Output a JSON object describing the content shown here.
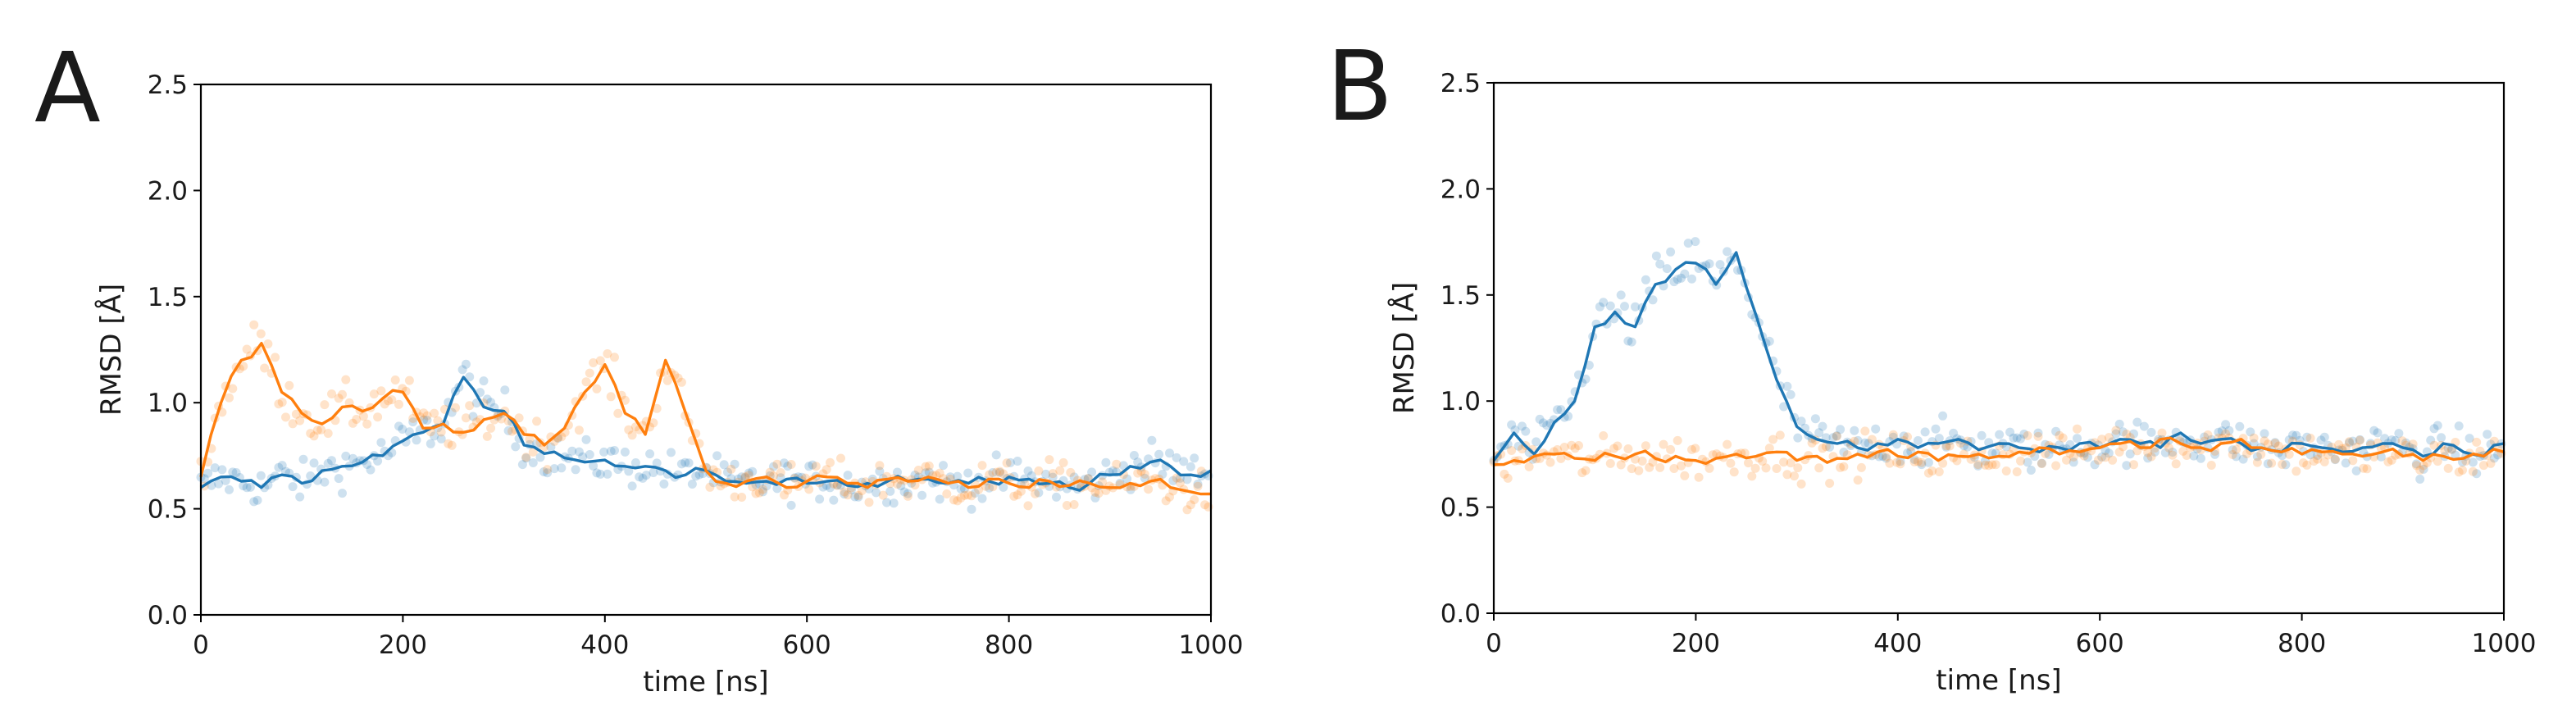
{
  "chart_data": [
    {
      "panel": "A",
      "type": "line",
      "xlabel": "time [ns]",
      "ylabel": "RMSD [Å]",
      "xlim": [
        0,
        1000
      ],
      "ylim": [
        0.0,
        2.5
      ],
      "xticks": [
        0,
        200,
        400,
        600,
        800,
        1000
      ],
      "yticks": [
        0.0,
        0.5,
        1.0,
        1.5,
        2.0,
        2.5
      ],
      "xtick_labels": [
        "0",
        "200",
        "400",
        "600",
        "800",
        "1000"
      ],
      "ytick_labels": [
        "0.0",
        "0.5",
        "1.0",
        "1.5",
        "2.0",
        "2.5"
      ],
      "grid": false,
      "legend": null,
      "raw_points_shown": true,
      "series": [
        {
          "name": "blue",
          "color": "#1f77b4",
          "x": [
            0,
            20,
            40,
            60,
            80,
            100,
            120,
            140,
            160,
            180,
            200,
            220,
            240,
            260,
            280,
            300,
            320,
            340,
            360,
            380,
            400,
            420,
            440,
            460,
            480,
            500,
            520,
            540,
            560,
            580,
            600,
            620,
            640,
            660,
            680,
            700,
            720,
            740,
            760,
            780,
            800,
            820,
            840,
            860,
            880,
            900,
            920,
            940,
            960,
            980,
            1000
          ],
          "values": [
            0.6,
            0.65,
            0.63,
            0.6,
            0.66,
            0.62,
            0.68,
            0.7,
            0.72,
            0.75,
            0.82,
            0.86,
            0.9,
            1.12,
            0.98,
            0.96,
            0.8,
            0.76,
            0.74,
            0.72,
            0.73,
            0.7,
            0.7,
            0.68,
            0.66,
            0.68,
            0.63,
            0.62,
            0.63,
            0.64,
            0.62,
            0.63,
            0.61,
            0.62,
            0.63,
            0.63,
            0.64,
            0.62,
            0.62,
            0.63,
            0.65,
            0.64,
            0.62,
            0.6,
            0.62,
            0.66,
            0.7,
            0.72,
            0.7,
            0.66,
            0.68
          ]
        },
        {
          "name": "orange",
          "color": "#ff7f0e",
          "x": [
            0,
            20,
            40,
            60,
            80,
            100,
            120,
            140,
            160,
            180,
            200,
            220,
            240,
            260,
            280,
            300,
            320,
            340,
            360,
            380,
            400,
            420,
            440,
            460,
            480,
            500,
            520,
            540,
            560,
            580,
            600,
            620,
            640,
            660,
            680,
            700,
            720,
            740,
            760,
            780,
            800,
            820,
            840,
            860,
            880,
            900,
            920,
            940,
            960,
            980,
            1000
          ],
          "values": [
            0.65,
            1.0,
            1.2,
            1.28,
            1.05,
            0.95,
            0.9,
            0.98,
            0.96,
            1.02,
            1.05,
            0.88,
            0.9,
            0.86,
            0.92,
            0.95,
            0.85,
            0.8,
            0.88,
            1.05,
            1.18,
            0.95,
            0.85,
            1.2,
            0.95,
            0.68,
            0.62,
            0.63,
            0.65,
            0.6,
            0.63,
            0.65,
            0.62,
            0.6,
            0.64,
            0.63,
            0.65,
            0.62,
            0.6,
            0.64,
            0.62,
            0.6,
            0.63,
            0.61,
            0.62,
            0.6,
            0.62,
            0.63,
            0.6,
            0.58,
            0.57
          ]
        }
      ]
    },
    {
      "panel": "B",
      "type": "line",
      "xlabel": "time [ns]",
      "ylabel": "RMSD [Å]",
      "xlim": [
        0,
        1000
      ],
      "ylim": [
        0.0,
        2.5
      ],
      "xticks": [
        0,
        200,
        400,
        600,
        800,
        1000
      ],
      "yticks": [
        0.0,
        0.5,
        1.0,
        1.5,
        2.0,
        2.5
      ],
      "xtick_labels": [
        "0",
        "200",
        "400",
        "600",
        "800",
        "1000"
      ],
      "ytick_labels": [
        "0.0",
        "0.5",
        "1.0",
        "1.5",
        "2.0",
        "2.5"
      ],
      "grid": false,
      "legend": null,
      "raw_points_shown": true,
      "series": [
        {
          "name": "blue",
          "color": "#1f77b4",
          "x": [
            0,
            20,
            40,
            60,
            80,
            100,
            120,
            140,
            160,
            180,
            200,
            220,
            240,
            260,
            280,
            300,
            320,
            340,
            360,
            380,
            400,
            420,
            440,
            460,
            480,
            500,
            520,
            540,
            560,
            580,
            600,
            620,
            640,
            660,
            680,
            700,
            720,
            740,
            760,
            780,
            800,
            820,
            840,
            860,
            880,
            900,
            920,
            940,
            960,
            980,
            1000
          ],
          "values": [
            0.72,
            0.85,
            0.75,
            0.9,
            1.0,
            1.35,
            1.42,
            1.35,
            1.55,
            1.62,
            1.65,
            1.55,
            1.7,
            1.4,
            1.1,
            0.88,
            0.82,
            0.8,
            0.78,
            0.8,
            0.82,
            0.78,
            0.8,
            0.82,
            0.77,
            0.8,
            0.78,
            0.76,
            0.78,
            0.8,
            0.78,
            0.82,
            0.8,
            0.78,
            0.85,
            0.8,
            0.82,
            0.8,
            0.78,
            0.76,
            0.8,
            0.78,
            0.76,
            0.78,
            0.8,
            0.78,
            0.74,
            0.8,
            0.76,
            0.74,
            0.8
          ]
        },
        {
          "name": "orange",
          "color": "#ff7f0e",
          "x": [
            0,
            20,
            40,
            60,
            80,
            100,
            120,
            140,
            160,
            180,
            200,
            220,
            240,
            260,
            280,
            300,
            320,
            340,
            360,
            380,
            400,
            420,
            440,
            460,
            480,
            500,
            520,
            540,
            560,
            580,
            600,
            620,
            640,
            660,
            680,
            700,
            720,
            740,
            760,
            780,
            800,
            820,
            840,
            860,
            880,
            900,
            920,
            940,
            960,
            980,
            1000
          ],
          "values": [
            0.7,
            0.72,
            0.74,
            0.75,
            0.73,
            0.72,
            0.74,
            0.75,
            0.73,
            0.74,
            0.72,
            0.73,
            0.75,
            0.74,
            0.76,
            0.72,
            0.74,
            0.73,
            0.75,
            0.76,
            0.74,
            0.76,
            0.72,
            0.74,
            0.75,
            0.74,
            0.76,
            0.78,
            0.75,
            0.76,
            0.78,
            0.8,
            0.78,
            0.82,
            0.8,
            0.78,
            0.8,
            0.82,
            0.78,
            0.76,
            0.75,
            0.76,
            0.75,
            0.74,
            0.76,
            0.74,
            0.72,
            0.74,
            0.73,
            0.74,
            0.76
          ]
        }
      ]
    }
  ]
}
